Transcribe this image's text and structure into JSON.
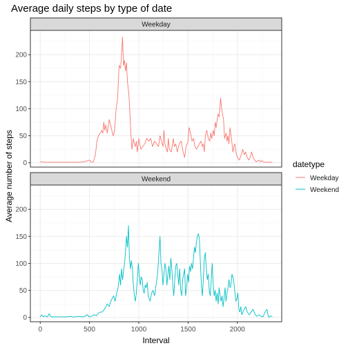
{
  "chart_data": {
    "type": "line",
    "title": "Average daily steps by type of date",
    "xlabel": "Interval",
    "ylabel": "Average number of steps",
    "xlim": [
      -100,
      2450
    ],
    "ylim": [
      -8,
      245
    ],
    "x_ticks": [
      0,
      500,
      1000,
      1500,
      2000
    ],
    "y_ticks": [
      0,
      50,
      100,
      150,
      200
    ],
    "grid": true,
    "legend": {
      "title": "datetype",
      "position": "right"
    },
    "facets": [
      "Weekday",
      "Weekend"
    ],
    "series": [
      {
        "name": "Weekday",
        "color": "#F8766D",
        "points": [
          [
            0,
            2
          ],
          [
            50,
            1
          ],
          [
            100,
            1
          ],
          [
            150,
            1
          ],
          [
            200,
            1
          ],
          [
            250,
            1
          ],
          [
            300,
            1
          ],
          [
            350,
            1
          ],
          [
            400,
            1
          ],
          [
            450,
            2
          ],
          [
            500,
            5
          ],
          [
            520,
            1
          ],
          [
            540,
            2
          ],
          [
            560,
            15
          ],
          [
            575,
            40
          ],
          [
            590,
            50
          ],
          [
            610,
            55
          ],
          [
            625,
            60
          ],
          [
            635,
            55
          ],
          [
            645,
            75
          ],
          [
            655,
            60
          ],
          [
            665,
            70
          ],
          [
            680,
            55
          ],
          [
            700,
            80
          ],
          [
            720,
            65
          ],
          [
            740,
            50
          ],
          [
            755,
            60
          ],
          [
            770,
            100
          ],
          [
            785,
            120
          ],
          [
            800,
            180
          ],
          [
            815,
            175
          ],
          [
            825,
            200
          ],
          [
            835,
            233
          ],
          [
            845,
            180
          ],
          [
            855,
            190
          ],
          [
            865,
            170
          ],
          [
            875,
            185
          ],
          [
            885,
            150
          ],
          [
            900,
            125
          ],
          [
            910,
            90
          ],
          [
            920,
            55
          ],
          [
            930,
            25
          ],
          [
            945,
            45
          ],
          [
            955,
            35
          ],
          [
            965,
            30
          ],
          [
            975,
            40
          ],
          [
            985,
            20
          ],
          [
            1000,
            45
          ],
          [
            1020,
            25
          ],
          [
            1040,
            30
          ],
          [
            1060,
            35
          ],
          [
            1080,
            45
          ],
          [
            1100,
            40
          ],
          [
            1120,
            45
          ],
          [
            1140,
            30
          ],
          [
            1160,
            40
          ],
          [
            1180,
            35
          ],
          [
            1200,
            30
          ],
          [
            1215,
            50
          ],
          [
            1230,
            40
          ],
          [
            1245,
            30
          ],
          [
            1255,
            60
          ],
          [
            1265,
            35
          ],
          [
            1280,
            25
          ],
          [
            1290,
            20
          ],
          [
            1300,
            45
          ],
          [
            1310,
            25
          ],
          [
            1330,
            20
          ],
          [
            1350,
            45
          ],
          [
            1360,
            30
          ],
          [
            1375,
            35
          ],
          [
            1390,
            20
          ],
          [
            1410,
            35
          ],
          [
            1430,
            40
          ],
          [
            1450,
            20
          ],
          [
            1465,
            10
          ],
          [
            1480,
            30
          ],
          [
            1500,
            40
          ],
          [
            1510,
            65
          ],
          [
            1525,
            55
          ],
          [
            1540,
            40
          ],
          [
            1555,
            45
          ],
          [
            1570,
            30
          ],
          [
            1585,
            25
          ],
          [
            1600,
            30
          ],
          [
            1615,
            35
          ],
          [
            1630,
            40
          ],
          [
            1645,
            30
          ],
          [
            1655,
            35
          ],
          [
            1665,
            20
          ],
          [
            1675,
            50
          ],
          [
            1690,
            60
          ],
          [
            1705,
            45
          ],
          [
            1720,
            40
          ],
          [
            1730,
            55
          ],
          [
            1740,
            45
          ],
          [
            1755,
            60
          ],
          [
            1765,
            50
          ],
          [
            1775,
            75
          ],
          [
            1785,
            65
          ],
          [
            1795,
            80
          ],
          [
            1805,
            90
          ],
          [
            1815,
            85
          ],
          [
            1830,
            120
          ],
          [
            1840,
            100
          ],
          [
            1850,
            90
          ],
          [
            1860,
            80
          ],
          [
            1870,
            45
          ],
          [
            1885,
            55
          ],
          [
            1895,
            40
          ],
          [
            1905,
            50
          ],
          [
            1915,
            35
          ],
          [
            1925,
            65
          ],
          [
            1940,
            45
          ],
          [
            1955,
            20
          ],
          [
            1965,
            30
          ],
          [
            1975,
            35
          ],
          [
            1985,
            20
          ],
          [
            2000,
            10
          ],
          [
            2020,
            5
          ],
          [
            2040,
            15
          ],
          [
            2055,
            25
          ],
          [
            2070,
            15
          ],
          [
            2085,
            20
          ],
          [
            2100,
            10
          ],
          [
            2115,
            5
          ],
          [
            2130,
            10
          ],
          [
            2145,
            20
          ],
          [
            2160,
            10
          ],
          [
            2175,
            5
          ],
          [
            2190,
            2
          ],
          [
            2205,
            3
          ],
          [
            2220,
            5
          ],
          [
            2235,
            2
          ],
          [
            2250,
            4
          ],
          [
            2260,
            2
          ],
          [
            2280,
            1
          ],
          [
            2300,
            1
          ],
          [
            2320,
            1
          ],
          [
            2340,
            1
          ],
          [
            2355,
            1
          ]
        ]
      },
      {
        "name": "Weekend",
        "color": "#00BFC4",
        "points": [
          [
            0,
            1
          ],
          [
            15,
            5
          ],
          [
            30,
            1
          ],
          [
            45,
            3
          ],
          [
            60,
            2
          ],
          [
            75,
            1
          ],
          [
            90,
            7
          ],
          [
            105,
            2
          ],
          [
            120,
            1
          ],
          [
            150,
            1
          ],
          [
            180,
            1
          ],
          [
            210,
            1
          ],
          [
            240,
            1
          ],
          [
            270,
            1
          ],
          [
            300,
            2
          ],
          [
            330,
            1
          ],
          [
            360,
            1
          ],
          [
            390,
            2
          ],
          [
            420,
            1
          ],
          [
            450,
            2
          ],
          [
            480,
            5
          ],
          [
            495,
            1
          ],
          [
            510,
            2
          ],
          [
            530,
            3
          ],
          [
            550,
            5
          ],
          [
            570,
            3
          ],
          [
            590,
            8
          ],
          [
            610,
            10
          ],
          [
            630,
            10
          ],
          [
            650,
            15
          ],
          [
            665,
            20
          ],
          [
            680,
            25
          ],
          [
            700,
            20
          ],
          [
            715,
            30
          ],
          [
            730,
            35
          ],
          [
            745,
            40
          ],
          [
            760,
            30
          ],
          [
            775,
            45
          ],
          [
            790,
            55
          ],
          [
            805,
            80
          ],
          [
            815,
            60
          ],
          [
            825,
            90
          ],
          [
            835,
            70
          ],
          [
            845,
            85
          ],
          [
            855,
            100
          ],
          [
            865,
            120
          ],
          [
            875,
            150
          ],
          [
            885,
            130
          ],
          [
            895,
            170
          ],
          [
            905,
            110
          ],
          [
            915,
            90
          ],
          [
            925,
            105
          ],
          [
            935,
            90
          ],
          [
            945,
            60
          ],
          [
            955,
            40
          ],
          [
            965,
            30
          ],
          [
            975,
            45
          ],
          [
            985,
            70
          ],
          [
            995,
            100
          ],
          [
            1005,
            80
          ],
          [
            1015,
            60
          ],
          [
            1025,
            75
          ],
          [
            1035,
            70
          ],
          [
            1045,
            50
          ],
          [
            1055,
            45
          ],
          [
            1065,
            60
          ],
          [
            1075,
            55
          ],
          [
            1085,
            65
          ],
          [
            1095,
            40
          ],
          [
            1105,
            35
          ],
          [
            1115,
            30
          ],
          [
            1130,
            45
          ],
          [
            1145,
            50
          ],
          [
            1160,
            40
          ],
          [
            1175,
            60
          ],
          [
            1190,
            80
          ],
          [
            1205,
            120
          ],
          [
            1215,
            150
          ],
          [
            1225,
            100
          ],
          [
            1235,
            90
          ],
          [
            1245,
            60
          ],
          [
            1255,
            80
          ],
          [
            1265,
            100
          ],
          [
            1275,
            90
          ],
          [
            1285,
            60
          ],
          [
            1295,
            80
          ],
          [
            1305,
            95
          ],
          [
            1315,
            70
          ],
          [
            1325,
            110
          ],
          [
            1335,
            90
          ],
          [
            1345,
            60
          ],
          [
            1355,
            40
          ],
          [
            1365,
            70
          ],
          [
            1375,
            95
          ],
          [
            1385,
            100
          ],
          [
            1395,
            80
          ],
          [
            1405,
            60
          ],
          [
            1415,
            90
          ],
          [
            1425,
            50
          ],
          [
            1435,
            40
          ],
          [
            1445,
            70
          ],
          [
            1455,
            80
          ],
          [
            1465,
            90
          ],
          [
            1475,
            40
          ],
          [
            1485,
            55
          ],
          [
            1495,
            80
          ],
          [
            1505,
            65
          ],
          [
            1515,
            95
          ],
          [
            1525,
            85
          ],
          [
            1535,
            100
          ],
          [
            1545,
            90
          ],
          [
            1555,
            110
          ],
          [
            1565,
            130
          ],
          [
            1575,
            120
          ],
          [
            1585,
            140
          ],
          [
            1595,
            150
          ],
          [
            1605,
            155
          ],
          [
            1615,
            145
          ],
          [
            1625,
            100
          ],
          [
            1635,
            60
          ],
          [
            1645,
            40
          ],
          [
            1655,
            70
          ],
          [
            1665,
            110
          ],
          [
            1675,
            120
          ],
          [
            1685,
            90
          ],
          [
            1695,
            70
          ],
          [
            1705,
            80
          ],
          [
            1715,
            50
          ],
          [
            1725,
            40
          ],
          [
            1735,
            70
          ],
          [
            1745,
            100
          ],
          [
            1755,
            60
          ],
          [
            1765,
            40
          ],
          [
            1775,
            50
          ],
          [
            1785,
            30
          ],
          [
            1795,
            45
          ],
          [
            1805,
            25
          ],
          [
            1815,
            55
          ],
          [
            1825,
            40
          ],
          [
            1835,
            30
          ],
          [
            1845,
            40
          ],
          [
            1855,
            20
          ],
          [
            1865,
            35
          ],
          [
            1875,
            55
          ],
          [
            1885,
            30
          ],
          [
            1895,
            45
          ],
          [
            1905,
            55
          ],
          [
            1915,
            70
          ],
          [
            1925,
            55
          ],
          [
            1935,
            60
          ],
          [
            1945,
            80
          ],
          [
            1955,
            75
          ],
          [
            1965,
            65
          ],
          [
            1975,
            45
          ],
          [
            1985,
            30
          ],
          [
            1995,
            35
          ],
          [
            2005,
            45
          ],
          [
            2015,
            15
          ],
          [
            2025,
            10
          ],
          [
            2035,
            20
          ],
          [
            2045,
            5
          ],
          [
            2055,
            10
          ],
          [
            2070,
            15
          ],
          [
            2085,
            20
          ],
          [
            2100,
            10
          ],
          [
            2120,
            5
          ],
          [
            2140,
            10
          ],
          [
            2160,
            15
          ],
          [
            2180,
            5
          ],
          [
            2200,
            2
          ],
          [
            2220,
            5
          ],
          [
            2240,
            2
          ],
          [
            2260,
            1
          ],
          [
            2280,
            10
          ],
          [
            2300,
            15
          ],
          [
            2310,
            5
          ],
          [
            2320,
            0
          ],
          [
            2335,
            3
          ],
          [
            2355,
            1
          ]
        ]
      }
    ]
  }
}
